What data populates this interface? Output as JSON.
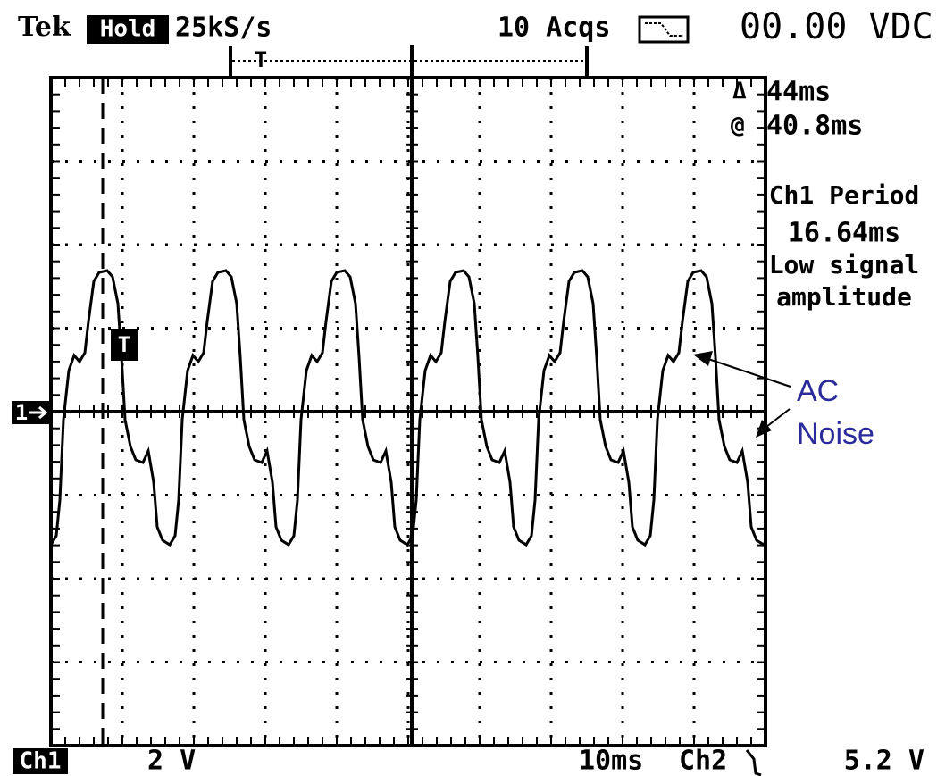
{
  "header": {
    "brand": "Tek",
    "mode": "Hold",
    "sample_rate": "25kS/s",
    "acquisitions": "10 Acqs",
    "readout": "00.00 VDC"
  },
  "measurements": {
    "delta_label": "Δ",
    "delta": "44ms",
    "at_label": "@",
    "at": "40.8ms",
    "period_label": "Ch1 Period",
    "period": "16.64ms",
    "status": [
      "Low signal",
      "amplitude"
    ]
  },
  "annotation": [
    "AC",
    "Noise"
  ],
  "markers": {
    "channel_ground": "1",
    "trigger": "T"
  },
  "footer": {
    "channel": "Ch1",
    "volts_per_div": "2 V",
    "time_per_div": "10ms",
    "trigger_source": "Ch2",
    "trigger_level": "5.2 V"
  }
}
